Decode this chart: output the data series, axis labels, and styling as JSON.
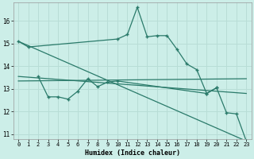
{
  "xlabel": "Humidex (Indice chaleur)",
  "background_color": "#cceee8",
  "grid_color": "#b8ddd6",
  "line_color": "#2a7a6a",
  "xlim": [
    -0.5,
    23.5
  ],
  "ylim": [
    10.8,
    16.8
  ],
  "yticks": [
    11,
    12,
    13,
    14,
    15,
    16
  ],
  "xticks": [
    0,
    1,
    2,
    3,
    4,
    5,
    6,
    7,
    8,
    9,
    10,
    11,
    12,
    13,
    14,
    15,
    16,
    17,
    18,
    19,
    20,
    21,
    22,
    23
  ],
  "series0_x": [
    0,
    1,
    10,
    11,
    12,
    13,
    14,
    15,
    16,
    17,
    18,
    19,
    20,
    21,
    22,
    23
  ],
  "series0_y": [
    15.1,
    14.85,
    15.2,
    15.4,
    16.6,
    15.3,
    15.35,
    15.35,
    14.75,
    14.1,
    13.85,
    12.8,
    13.05,
    11.95,
    11.9,
    10.7
  ],
  "series1_x": [
    2,
    3,
    4,
    5,
    6,
    7,
    8,
    9,
    10,
    19,
    20
  ],
  "series1_y": [
    13.55,
    12.65,
    12.65,
    12.55,
    12.9,
    13.45,
    13.1,
    13.3,
    13.35,
    12.8,
    13.05
  ],
  "trend1_x": [
    0,
    23
  ],
  "trend1_y": [
    15.1,
    10.7
  ],
  "trend2_x": [
    0,
    23
  ],
  "trend2_y": [
    13.55,
    12.8
  ],
  "trend3_x": [
    0,
    23
  ],
  "trend3_y": [
    13.35,
    13.45
  ]
}
